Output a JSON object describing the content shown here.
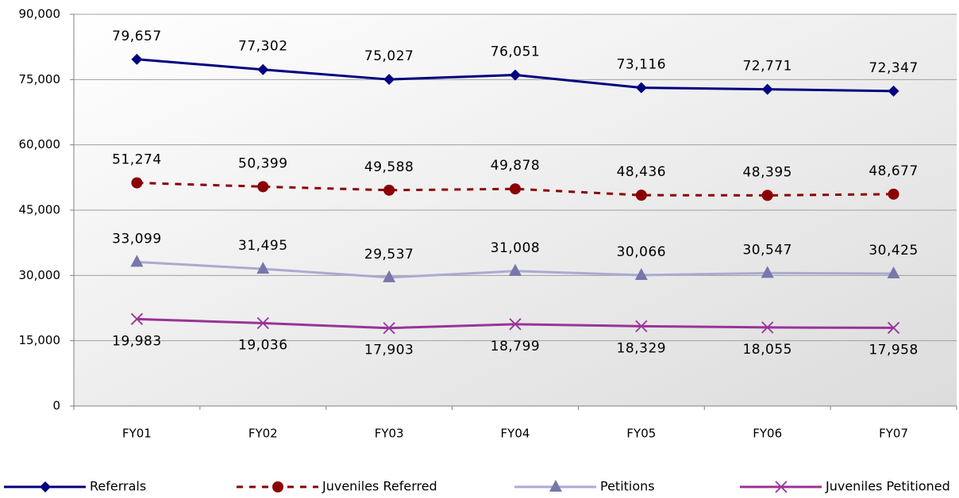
{
  "chart_data": {
    "type": "line",
    "categories": [
      "FY01",
      "FY02",
      "FY03",
      "FY04",
      "FY05",
      "FY06",
      "FY07"
    ],
    "ylim": [
      0,
      90000
    ],
    "yticks": [
      {
        "value": 0,
        "label": "0"
      },
      {
        "value": 15000,
        "label": "15,000"
      },
      {
        "value": 30000,
        "label": "30,000"
      },
      {
        "value": 45000,
        "label": "45,000"
      },
      {
        "value": 60000,
        "label": "60,000"
      },
      {
        "value": 75000,
        "label": "75,000"
      },
      {
        "value": 90000,
        "label": "90,000"
      }
    ],
    "grid": true,
    "legend": "bottom",
    "series": [
      {
        "name": "Referrals",
        "color": "#000080",
        "marker": "diamond",
        "dashed": false,
        "values": [
          79657,
          77302,
          75027,
          76051,
          73116,
          72771,
          72347
        ],
        "value_labels": [
          "79,657",
          "77,302",
          "75,027",
          "76,051",
          "73,116",
          "72,771",
          "72,347"
        ]
      },
      {
        "name": "Juveniles Referred",
        "color": "#8b0000",
        "marker": "circle",
        "dashed": true,
        "values": [
          51274,
          50399,
          49588,
          49878,
          48436,
          48395,
          48677
        ],
        "value_labels": [
          "51,274",
          "50,399",
          "49,588",
          "49,878",
          "48,436",
          "48,395",
          "48,677"
        ]
      },
      {
        "name": "Petitions",
        "color": "#aaaad4",
        "marker": "triangle",
        "dashed": false,
        "values": [
          33099,
          31495,
          29537,
          31008,
          30066,
          30547,
          30425
        ],
        "value_labels": [
          "33,099",
          "31,495",
          "29,537",
          "31,008",
          "30,066",
          "30,547",
          "30,425"
        ]
      },
      {
        "name": "Juveniles Petitioned",
        "color": "#993399",
        "marker": "x",
        "dashed": false,
        "values": [
          19983,
          19036,
          17903,
          18799,
          18329,
          18055,
          17958
        ],
        "value_labels": [
          "19,983",
          "19,036",
          "17,903",
          "18,799",
          "18,329",
          "18,055",
          "17,958"
        ]
      }
    ]
  }
}
